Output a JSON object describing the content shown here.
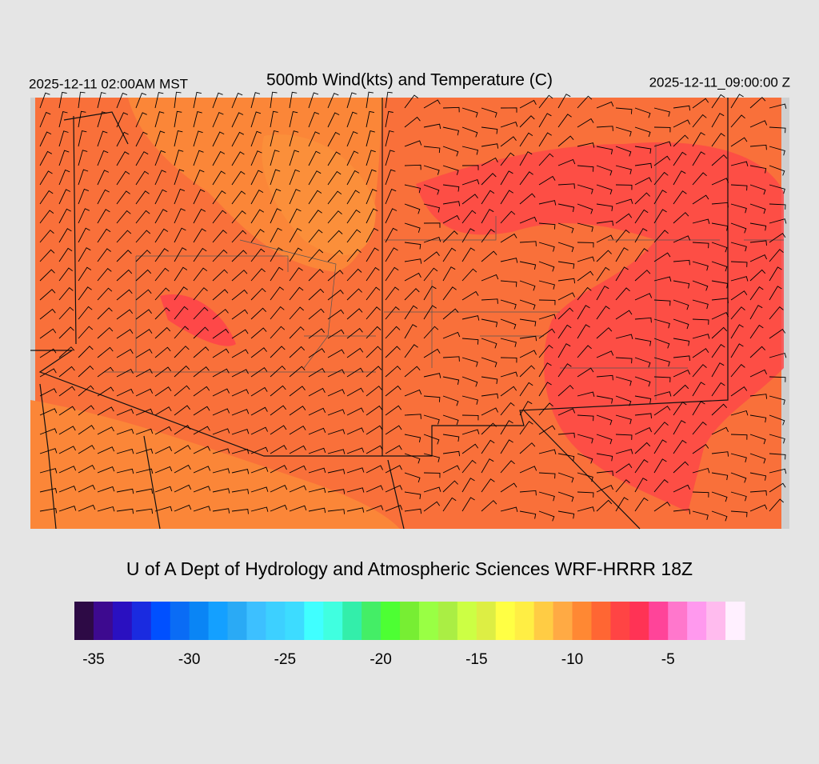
{
  "header": {
    "left_time": "2025-12-11 02:00AM MST",
    "title": "500mb Wind(kts) and Temperature (C)",
    "right_time": "2025-12-11_09:00:00 Z"
  },
  "footer": {
    "credit": "U of A Dept of Hydrology and Atmospheric Sciences WRF-HRRR 18Z"
  },
  "colorbar": {
    "min": -36,
    "max": -1,
    "ticks": [
      -35,
      -30,
      -25,
      -20,
      -15,
      -10,
      -5
    ],
    "colors": [
      "#2d0a45",
      "#3d0a8f",
      "#2a10c0",
      "#1a2be0",
      "#0050ff",
      "#0a6cf5",
      "#0a85f5",
      "#14a0ff",
      "#2aaaf5",
      "#3dc0ff",
      "#3dd0ff",
      "#3ddcff",
      "#40ffff",
      "#40ffe0",
      "#33eeaa",
      "#44ee66",
      "#4dff33",
      "#77ee33",
      "#99ff44",
      "#aaee44",
      "#ccff44",
      "#ddee44",
      "#ffff44",
      "#ffee44",
      "#ffcc44",
      "#ffaa44",
      "#ff8833",
      "#ff6633",
      "#ff4444",
      "#ff3355",
      "#ff4499",
      "#ff77cc",
      "#ff99ee",
      "#ffbbee",
      "#fff0ff"
    ]
  }
}
